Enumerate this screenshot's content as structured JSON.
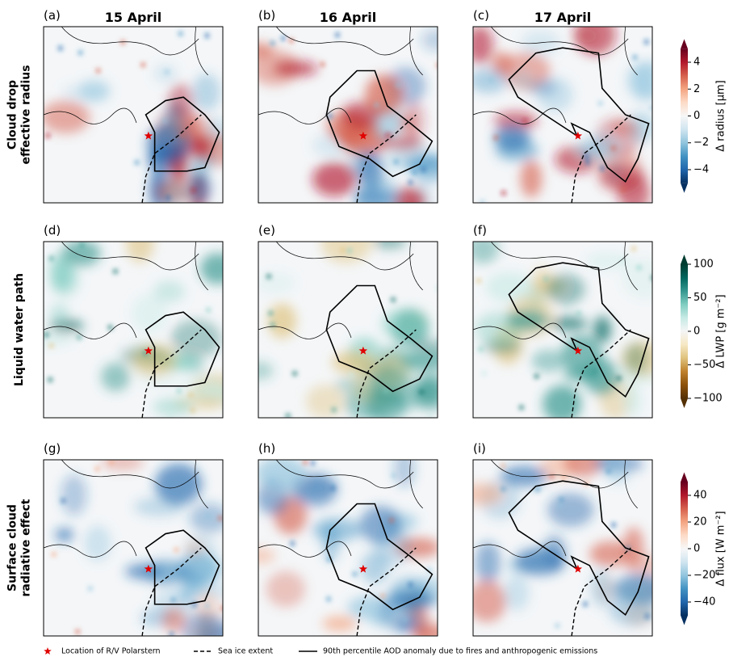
{
  "columns": [
    {
      "title": "15 April"
    },
    {
      "title": "16 April"
    },
    {
      "title": "17 April"
    }
  ],
  "rows": [
    {
      "label_lines": [
        "Cloud drop",
        "effective radius"
      ],
      "panels": [
        "(a)",
        "(b)",
        "(c)"
      ],
      "colorbar": {
        "label": "Δ radius [μm]",
        "lim": [
          -5,
          5
        ],
        "ticks": [
          {
            "value": 4,
            "label": "4"
          },
          {
            "value": 2,
            "label": "2"
          },
          {
            "value": 0,
            "label": "0"
          },
          {
            "value": -2,
            "label": "−2"
          },
          {
            "value": -4,
            "label": "−4"
          }
        ],
        "colors": [
          "#053061",
          "#2166ac",
          "#4393c3",
          "#92c5de",
          "#d1e5f0",
          "#f7f7f7",
          "#fddbc7",
          "#f4a582",
          "#d6604d",
          "#b2182b",
          "#67001f"
        ]
      }
    },
    {
      "label_lines": [
        "Liquid water path"
      ],
      "panels": [
        "(d)",
        "(e)",
        "(f)"
      ],
      "colorbar": {
        "label": "Δ LWP [g m⁻²]",
        "lim": [
          -100,
          100
        ],
        "ticks": [
          {
            "value": 100,
            "label": "100"
          },
          {
            "value": 50,
            "label": "50"
          },
          {
            "value": 0,
            "label": "0"
          },
          {
            "value": -50,
            "label": "−50"
          },
          {
            "value": -100,
            "label": "−100"
          }
        ],
        "colors": [
          "#543005",
          "#8c510a",
          "#bf812d",
          "#dfc27d",
          "#f6e8c3",
          "#f5f5f5",
          "#c7eae5",
          "#80cdc1",
          "#35978f",
          "#01665e",
          "#003c30"
        ]
      }
    },
    {
      "label_lines": [
        "Surface cloud",
        "radiative effect"
      ],
      "panels": [
        "(g)",
        "(h)",
        "(i)"
      ],
      "colorbar": {
        "label": "Δ flux [W m⁻²]",
        "lim": [
          -50,
          50
        ],
        "ticks": [
          {
            "value": 40,
            "label": "40"
          },
          {
            "value": 20,
            "label": "20"
          },
          {
            "value": 0,
            "label": "0"
          },
          {
            "value": -20,
            "label": "−20"
          },
          {
            "value": -40,
            "label": "−40"
          }
        ],
        "colors": [
          "#053061",
          "#2166ac",
          "#4393c3",
          "#92c5de",
          "#d1e5f0",
          "#f7f7f7",
          "#fddbc7",
          "#f4a582",
          "#d6604d",
          "#b2182b",
          "#67001f"
        ]
      }
    }
  ],
  "legend": {
    "star": "Location of R/V Polarstern",
    "dashed": "Sea ice extent",
    "solid": "90th percentile AOD anomaly due to fires and anthropogenic emissions"
  }
}
